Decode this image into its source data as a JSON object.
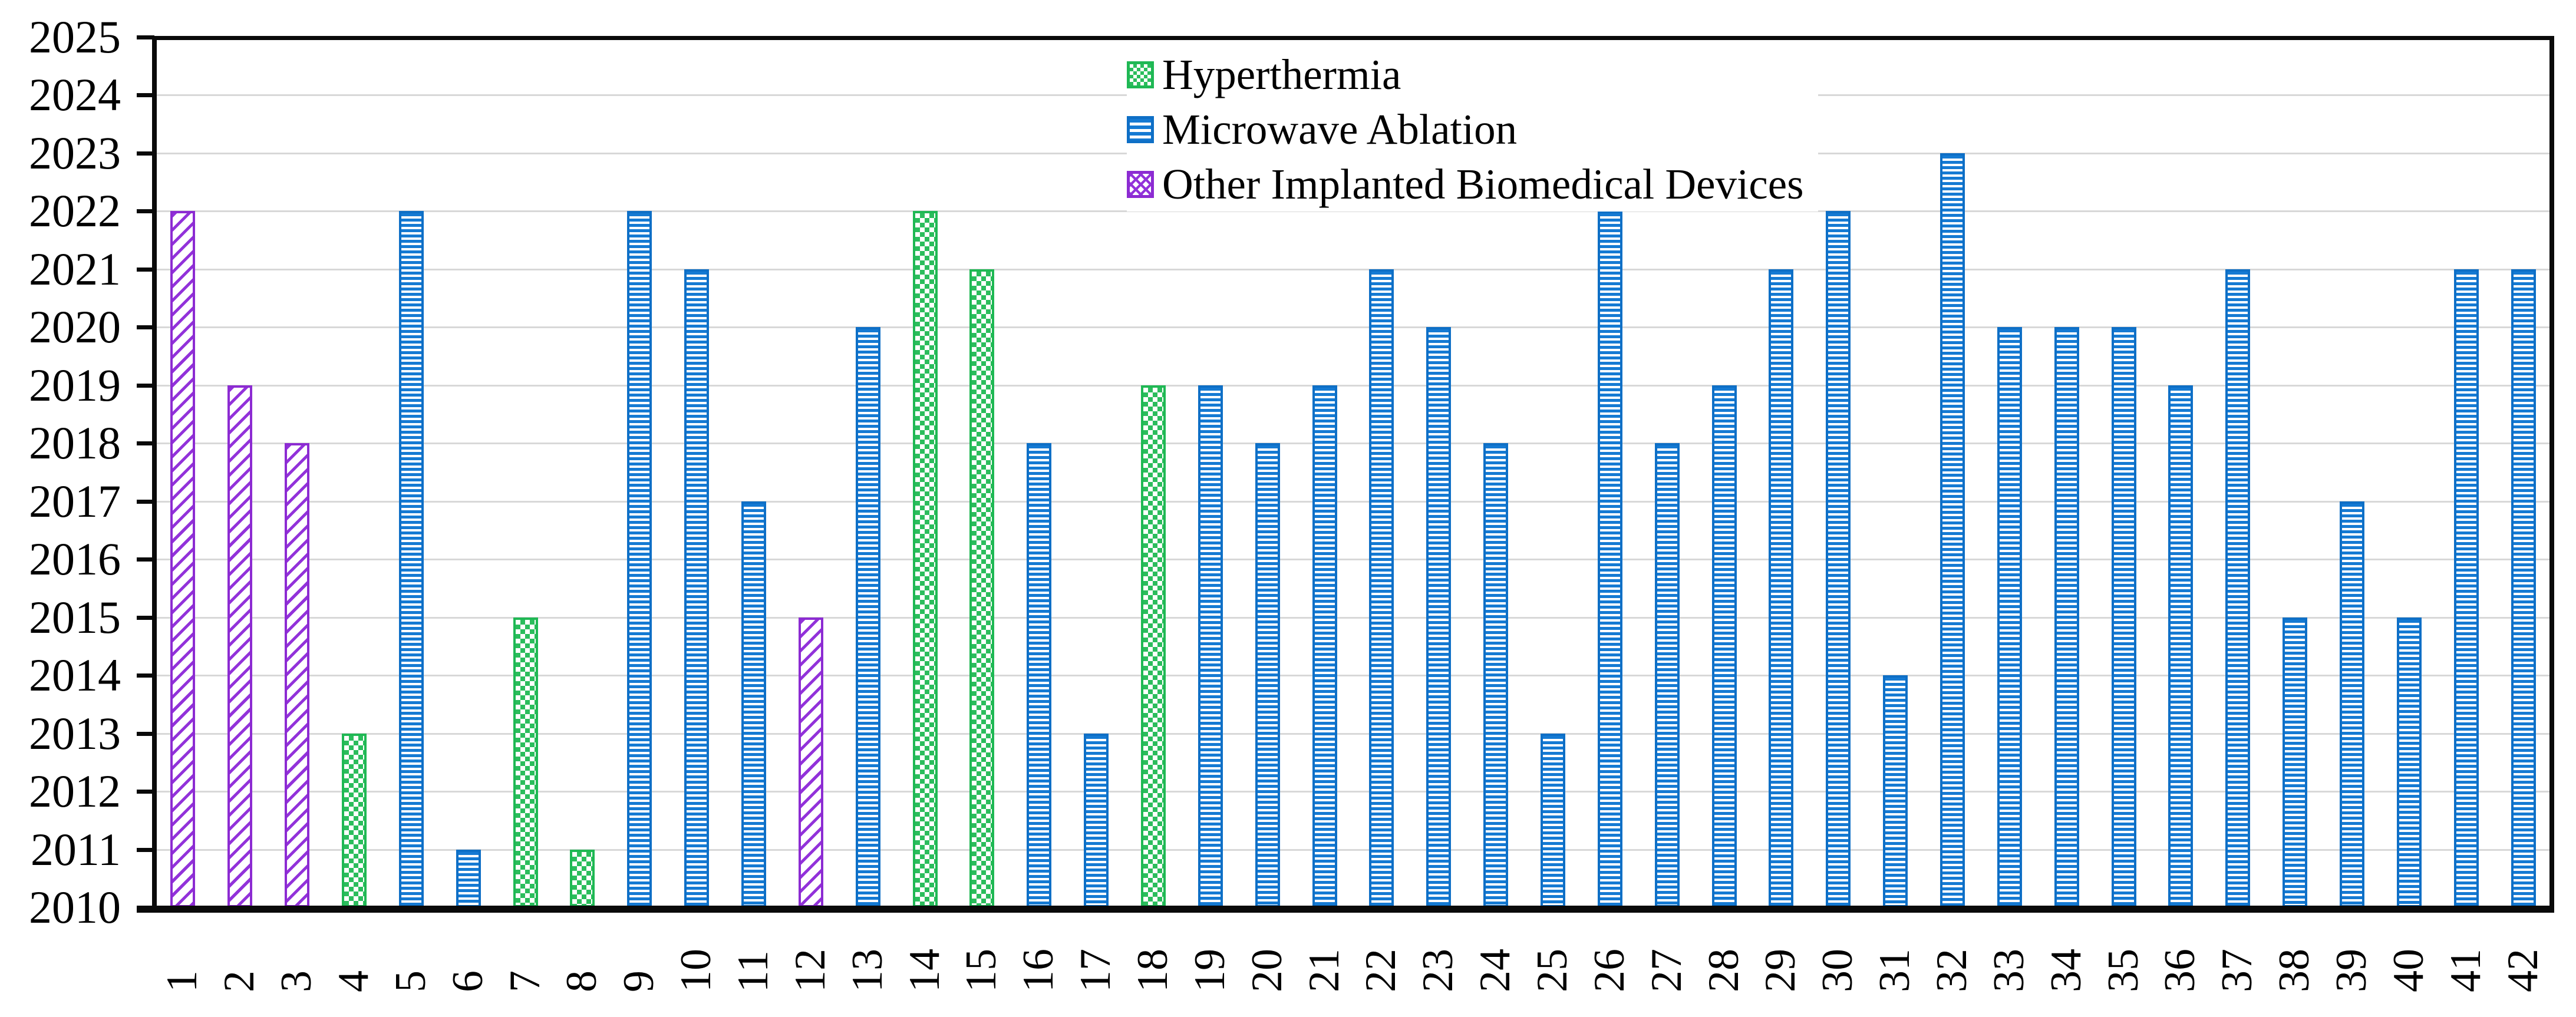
{
  "colors": {
    "background": "#FFFFFF",
    "axis": "#0A0A0A",
    "gridline": "#D8D8D8",
    "text": "#000000",
    "hyperthermia_green": "#2BBD5C",
    "microwave_blue": "#157AD3",
    "other_purple": "#9232DA"
  },
  "chart_data": {
    "type": "bar",
    "title": "",
    "xlabel": "",
    "ylabel": "",
    "grid": true,
    "legend_position": "top-center-inside",
    "y_axis": {
      "min": 2010,
      "max": 2025,
      "step": 1
    },
    "y_ticks": [
      "2010",
      "2011",
      "2012",
      "2013",
      "2014",
      "2015",
      "2016",
      "2017",
      "2018",
      "2019",
      "2020",
      "2021",
      "2022",
      "2023",
      "2024",
      "2025"
    ],
    "categories": [
      "1",
      "2",
      "3",
      "4",
      "5",
      "6",
      "7",
      "8",
      "9",
      "10",
      "11",
      "12",
      "13",
      "14",
      "15",
      "16",
      "17",
      "18",
      "19",
      "20",
      "21",
      "22",
      "23",
      "24",
      "25",
      "26",
      "27",
      "28",
      "29",
      "30",
      "31",
      "32",
      "33",
      "34",
      "35",
      "36",
      "37",
      "38",
      "39",
      "40",
      "41",
      "42"
    ],
    "series": [
      {
        "name": "Hyperthermia",
        "color": "#2BBD5C",
        "pattern": "checker"
      },
      {
        "name": "Microwave Ablation",
        "color": "#157AD3",
        "pattern": "horizontal-stripes"
      },
      {
        "name": "Other Implanted Biomedical Devices",
        "color": "#9232DA",
        "pattern": "diagonal-stripes"
      }
    ],
    "points": [
      {
        "label": "1",
        "year": 2022,
        "series": "Other Implanted Biomedical Devices"
      },
      {
        "label": "2",
        "year": 2019,
        "series": "Other Implanted Biomedical Devices"
      },
      {
        "label": "3",
        "year": 2018,
        "series": "Other Implanted Biomedical Devices"
      },
      {
        "label": "4",
        "year": 2013,
        "series": "Hyperthermia"
      },
      {
        "label": "5",
        "year": 2022,
        "series": "Microwave Ablation"
      },
      {
        "label": "6",
        "year": 2011,
        "series": "Microwave Ablation"
      },
      {
        "label": "7",
        "year": 2015,
        "series": "Hyperthermia"
      },
      {
        "label": "8",
        "year": 2011,
        "series": "Hyperthermia"
      },
      {
        "label": "9",
        "year": 2022,
        "series": "Microwave Ablation"
      },
      {
        "label": "10",
        "year": 2021,
        "series": "Microwave Ablation"
      },
      {
        "label": "11",
        "year": 2017,
        "series": "Microwave Ablation"
      },
      {
        "label": "12",
        "year": 2015,
        "series": "Other Implanted Biomedical Devices"
      },
      {
        "label": "13",
        "year": 2020,
        "series": "Microwave Ablation"
      },
      {
        "label": "14",
        "year": 2022,
        "series": "Hyperthermia"
      },
      {
        "label": "15",
        "year": 2021,
        "series": "Hyperthermia"
      },
      {
        "label": "16",
        "year": 2018,
        "series": "Microwave Ablation"
      },
      {
        "label": "17",
        "year": 2013,
        "series": "Microwave Ablation"
      },
      {
        "label": "18",
        "year": 2019,
        "series": "Hyperthermia"
      },
      {
        "label": "19",
        "year": 2019,
        "series": "Microwave Ablation"
      },
      {
        "label": "20",
        "year": 2018,
        "series": "Microwave Ablation"
      },
      {
        "label": "21",
        "year": 2019,
        "series": "Microwave Ablation"
      },
      {
        "label": "22",
        "year": 2021,
        "series": "Microwave Ablation"
      },
      {
        "label": "23",
        "year": 2020,
        "series": "Microwave Ablation"
      },
      {
        "label": "24",
        "year": 2018,
        "series": "Microwave Ablation"
      },
      {
        "label": "25",
        "year": 2013,
        "series": "Microwave Ablation"
      },
      {
        "label": "26",
        "year": 2022,
        "series": "Microwave Ablation"
      },
      {
        "label": "27",
        "year": 2018,
        "series": "Microwave Ablation"
      },
      {
        "label": "28",
        "year": 2019,
        "series": "Microwave Ablation"
      },
      {
        "label": "29",
        "year": 2021,
        "series": "Microwave Ablation"
      },
      {
        "label": "30",
        "year": 2022,
        "series": "Microwave Ablation"
      },
      {
        "label": "31",
        "year": 2014,
        "series": "Microwave Ablation"
      },
      {
        "label": "32",
        "year": 2023,
        "series": "Microwave Ablation"
      },
      {
        "label": "33",
        "year": 2020,
        "series": "Microwave Ablation"
      },
      {
        "label": "34",
        "year": 2020,
        "series": "Microwave Ablation"
      },
      {
        "label": "35",
        "year": 2020,
        "series": "Microwave Ablation"
      },
      {
        "label": "36",
        "year": 2019,
        "series": "Microwave Ablation"
      },
      {
        "label": "37",
        "year": 2021,
        "series": "Microwave Ablation"
      },
      {
        "label": "38",
        "year": 2015,
        "series": "Microwave Ablation"
      },
      {
        "label": "39",
        "year": 2017,
        "series": "Microwave Ablation"
      },
      {
        "label": "40",
        "year": 2015,
        "series": "Microwave Ablation"
      },
      {
        "label": "41",
        "year": 2021,
        "series": "Microwave Ablation"
      },
      {
        "label": "42",
        "year": 2021,
        "series": "Microwave Ablation"
      }
    ]
  }
}
